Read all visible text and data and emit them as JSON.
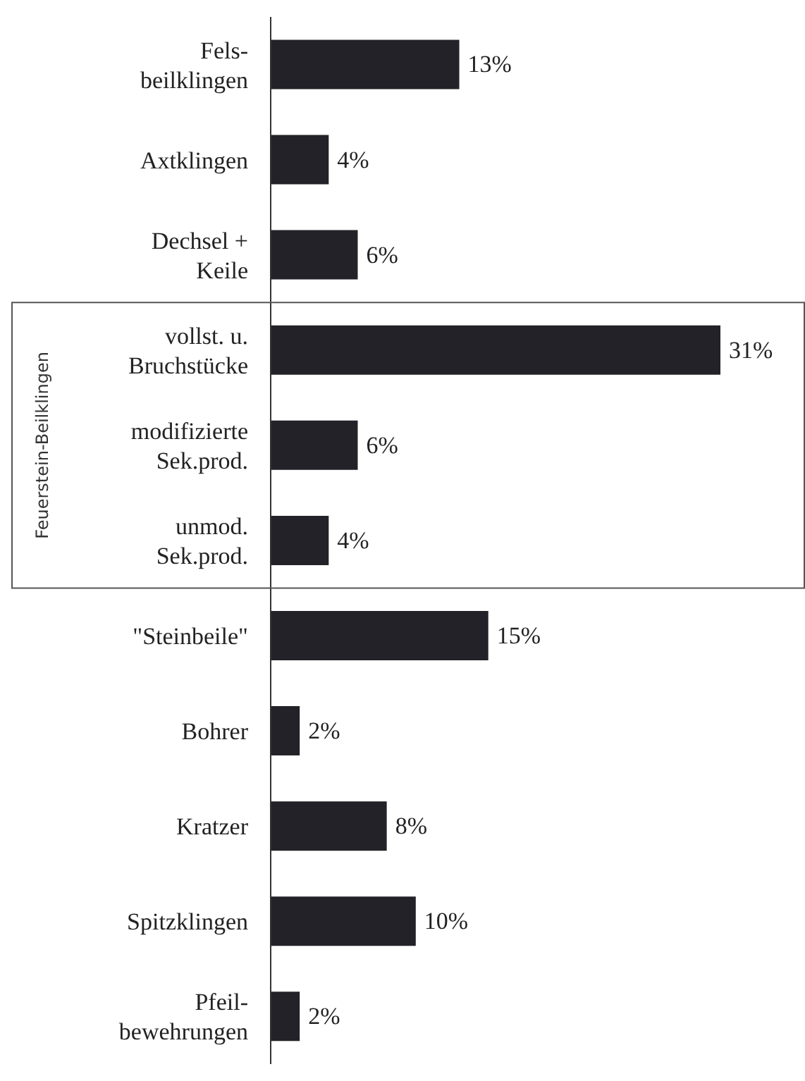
{
  "chart_data": {
    "type": "bar",
    "orientation": "horizontal",
    "categories": [
      "Fels-\nbeilklingen",
      "Axtklingen",
      "Dechsel +\nKeile",
      "vollst. u.\nBruchstücke",
      "modifizierte\nSek.prod.",
      "unmod.\nSek.prod.",
      "\"Steinbeile\"",
      "Bohrer",
      "Kratzer",
      "Spitzklingen",
      "Pfeil-\nbewehrungen"
    ],
    "values": [
      13,
      4,
      6,
      31,
      6,
      4,
      15,
      2,
      8,
      10,
      2
    ],
    "value_labels": [
      "13%",
      "4%",
      "6%",
      "31%",
      "6%",
      "4%",
      "15%",
      "2%",
      "8%",
      "10%",
      "2%"
    ],
    "color": "#222228",
    "annotations": [
      "Feuerstein-Beilklingen"
    ]
  }
}
